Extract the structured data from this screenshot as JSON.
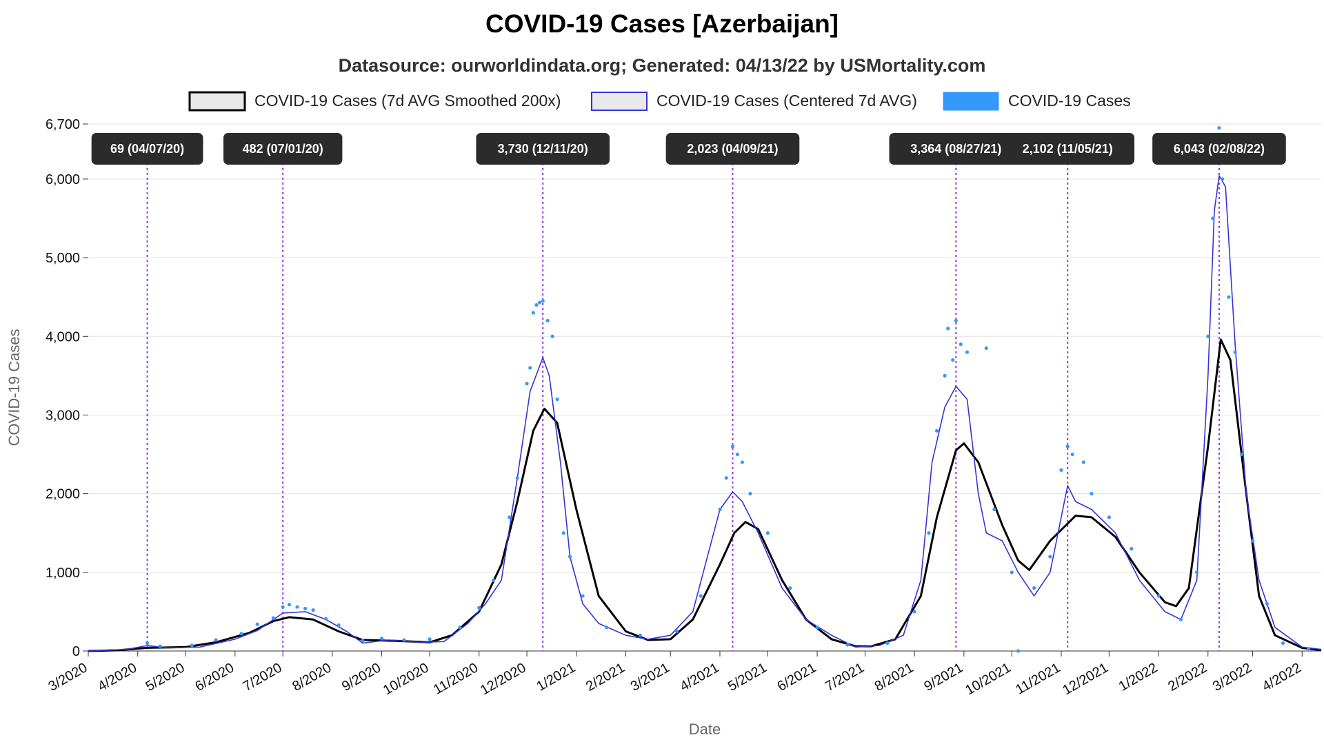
{
  "chart_data": {
    "type": "line",
    "title": "COVID-19 Cases [Azerbaijan]",
    "subtitle": "Datasource: ourworldindata.org; Generated: 04/13/22 by USMortality.com",
    "xlabel": "Date",
    "ylabel": "COVID-19 Cases",
    "x_range": [
      "2020-03-01",
      "2022-04-13"
    ],
    "ylim": [
      0,
      6700
    ],
    "y_ticks": [
      {
        "value": 0,
        "label": "0"
      },
      {
        "value": 1000,
        "label": "1,000"
      },
      {
        "value": 2000,
        "label": "2,000"
      },
      {
        "value": 3000,
        "label": "3,000"
      },
      {
        "value": 4000,
        "label": "4,000"
      },
      {
        "value": 5000,
        "label": "5,000"
      },
      {
        "value": 6000,
        "label": "6,000"
      },
      {
        "value": 6700,
        "label": "6,700"
      }
    ],
    "x_ticks": [
      {
        "date": "2020-03-01",
        "label": "3/2020"
      },
      {
        "date": "2020-04-01",
        "label": "4/2020"
      },
      {
        "date": "2020-05-01",
        "label": "5/2020"
      },
      {
        "date": "2020-06-01",
        "label": "6/2020"
      },
      {
        "date": "2020-07-01",
        "label": "7/2020"
      },
      {
        "date": "2020-08-01",
        "label": "8/2020"
      },
      {
        "date": "2020-09-01",
        "label": "9/2020"
      },
      {
        "date": "2020-10-01",
        "label": "10/2020"
      },
      {
        "date": "2020-11-01",
        "label": "11/2020"
      },
      {
        "date": "2020-12-01",
        "label": "12/2020"
      },
      {
        "date": "2021-01-01",
        "label": "1/2021"
      },
      {
        "date": "2021-02-01",
        "label": "2/2021"
      },
      {
        "date": "2021-03-01",
        "label": "3/2021"
      },
      {
        "date": "2021-04-01",
        "label": "4/2021"
      },
      {
        "date": "2021-05-01",
        "label": "5/2021"
      },
      {
        "date": "2021-06-01",
        "label": "6/2021"
      },
      {
        "date": "2021-07-01",
        "label": "7/2021"
      },
      {
        "date": "2021-08-01",
        "label": "8/2021"
      },
      {
        "date": "2021-09-01",
        "label": "9/2021"
      },
      {
        "date": "2021-10-01",
        "label": "10/2021"
      },
      {
        "date": "2021-11-01",
        "label": "11/2021"
      },
      {
        "date": "2021-12-01",
        "label": "12/2021"
      },
      {
        "date": "2022-01-01",
        "label": "1/2022"
      },
      {
        "date": "2022-02-01",
        "label": "2/2022"
      },
      {
        "date": "2022-03-01",
        "label": "3/2022"
      },
      {
        "date": "2022-04-01",
        "label": "4/2022"
      }
    ],
    "grid": true,
    "legend_position": "top",
    "series": [
      {
        "name": "COVID-19 Cases (7d AVG Smoothed 200x)",
        "style": "line",
        "color": "#000000",
        "points": [
          [
            "2020-03-01",
            0
          ],
          [
            "2020-03-20",
            10
          ],
          [
            "2020-04-07",
            40
          ],
          [
            "2020-05-01",
            50
          ],
          [
            "2020-05-20",
            110
          ],
          [
            "2020-06-10",
            230
          ],
          [
            "2020-06-25",
            380
          ],
          [
            "2020-07-05",
            430
          ],
          [
            "2020-07-20",
            400
          ],
          [
            "2020-08-05",
            250
          ],
          [
            "2020-08-20",
            140
          ],
          [
            "2020-09-10",
            130
          ],
          [
            "2020-10-01",
            110
          ],
          [
            "2020-10-15",
            200
          ],
          [
            "2020-11-01",
            500
          ],
          [
            "2020-11-15",
            1100
          ],
          [
            "2020-11-25",
            1900
          ],
          [
            "2020-12-05",
            2800
          ],
          [
            "2020-12-12",
            3080
          ],
          [
            "2020-12-20",
            2900
          ],
          [
            "2021-01-01",
            1800
          ],
          [
            "2021-01-15",
            700
          ],
          [
            "2021-02-01",
            250
          ],
          [
            "2021-02-15",
            140
          ],
          [
            "2021-03-01",
            150
          ],
          [
            "2021-03-15",
            400
          ],
          [
            "2021-04-01",
            1100
          ],
          [
            "2021-04-10",
            1500
          ],
          [
            "2021-04-17",
            1640
          ],
          [
            "2021-04-25",
            1550
          ],
          [
            "2021-05-10",
            900
          ],
          [
            "2021-05-25",
            400
          ],
          [
            "2021-06-10",
            150
          ],
          [
            "2021-06-25",
            60
          ],
          [
            "2021-07-05",
            60
          ],
          [
            "2021-07-20",
            150
          ],
          [
            "2021-08-05",
            700
          ],
          [
            "2021-08-15",
            1700
          ],
          [
            "2021-08-27",
            2550
          ],
          [
            "2021-09-01",
            2640
          ],
          [
            "2021-09-10",
            2400
          ],
          [
            "2021-09-25",
            1600
          ],
          [
            "2021-10-05",
            1150
          ],
          [
            "2021-10-12",
            1030
          ],
          [
            "2021-10-25",
            1400
          ],
          [
            "2021-11-10",
            1720
          ],
          [
            "2021-11-20",
            1700
          ],
          [
            "2021-12-05",
            1450
          ],
          [
            "2021-12-20",
            1000
          ],
          [
            "2022-01-05",
            620
          ],
          [
            "2022-01-12",
            570
          ],
          [
            "2022-01-20",
            800
          ],
          [
            "2022-02-01",
            2600
          ],
          [
            "2022-02-09",
            3960
          ],
          [
            "2022-02-15",
            3700
          ],
          [
            "2022-02-25",
            2000
          ],
          [
            "2022-03-05",
            700
          ],
          [
            "2022-03-15",
            200
          ],
          [
            "2022-04-01",
            40
          ],
          [
            "2022-04-13",
            10
          ]
        ]
      },
      {
        "name": "COVID-19 Cases (Centered 7d AVG)",
        "style": "line",
        "color": "#3333dd",
        "points": [
          [
            "2020-03-01",
            0
          ],
          [
            "2020-03-25",
            20
          ],
          [
            "2020-04-07",
            69
          ],
          [
            "2020-04-20",
            40
          ],
          [
            "2020-05-10",
            50
          ],
          [
            "2020-06-01",
            150
          ],
          [
            "2020-06-15",
            260
          ],
          [
            "2020-07-01",
            482
          ],
          [
            "2020-07-15",
            500
          ],
          [
            "2020-07-28",
            400
          ],
          [
            "2020-08-10",
            250
          ],
          [
            "2020-08-20",
            100
          ],
          [
            "2020-09-05",
            140
          ],
          [
            "2020-09-25",
            110
          ],
          [
            "2020-10-10",
            120
          ],
          [
            "2020-10-25",
            350
          ],
          [
            "2020-11-05",
            600
          ],
          [
            "2020-11-15",
            900
          ],
          [
            "2020-11-25",
            2200
          ],
          [
            "2020-12-03",
            3300
          ],
          [
            "2020-12-11",
            3730
          ],
          [
            "2020-12-15",
            3500
          ],
          [
            "2020-12-22",
            2400
          ],
          [
            "2020-12-28",
            1200
          ],
          [
            "2021-01-05",
            600
          ],
          [
            "2021-01-15",
            350
          ],
          [
            "2021-02-01",
            200
          ],
          [
            "2021-02-15",
            150
          ],
          [
            "2021-03-01",
            200
          ],
          [
            "2021-03-15",
            500
          ],
          [
            "2021-04-01",
            1800
          ],
          [
            "2021-04-09",
            2023
          ],
          [
            "2021-04-15",
            1900
          ],
          [
            "2021-04-25",
            1500
          ],
          [
            "2021-05-10",
            800
          ],
          [
            "2021-05-25",
            400
          ],
          [
            "2021-06-10",
            200
          ],
          [
            "2021-06-25",
            50
          ],
          [
            "2021-07-10",
            70
          ],
          [
            "2021-07-25",
            200
          ],
          [
            "2021-08-05",
            900
          ],
          [
            "2021-08-12",
            2400
          ],
          [
            "2021-08-20",
            3100
          ],
          [
            "2021-08-27",
            3364
          ],
          [
            "2021-09-03",
            3200
          ],
          [
            "2021-09-10",
            2000
          ],
          [
            "2021-09-15",
            1500
          ],
          [
            "2021-09-25",
            1400
          ],
          [
            "2021-10-05",
            1000
          ],
          [
            "2021-10-15",
            700
          ],
          [
            "2021-10-25",
            1000
          ],
          [
            "2021-11-05",
            2102
          ],
          [
            "2021-11-10",
            1900
          ],
          [
            "2021-11-20",
            1800
          ],
          [
            "2021-12-05",
            1500
          ],
          [
            "2021-12-20",
            900
          ],
          [
            "2022-01-05",
            500
          ],
          [
            "2022-01-15",
            400
          ],
          [
            "2022-01-25",
            900
          ],
          [
            "2022-02-01",
            3500
          ],
          [
            "2022-02-05",
            5600
          ],
          [
            "2022-02-08",
            6043
          ],
          [
            "2022-02-12",
            5900
          ],
          [
            "2022-02-18",
            3900
          ],
          [
            "2022-02-25",
            2000
          ],
          [
            "2022-03-05",
            900
          ],
          [
            "2022-03-15",
            300
          ],
          [
            "2022-04-01",
            50
          ],
          [
            "2022-04-13",
            20
          ]
        ]
      },
      {
        "name": "COVID-19 Cases",
        "style": "scatter",
        "color": "#3399ff",
        "points": [
          [
            "2020-04-07",
            100
          ],
          [
            "2020-04-15",
            60
          ],
          [
            "2020-05-05",
            70
          ],
          [
            "2020-05-20",
            140
          ],
          [
            "2020-06-05",
            220
          ],
          [
            "2020-06-15",
            340
          ],
          [
            "2020-06-25",
            420
          ],
          [
            "2020-07-01",
            560
          ],
          [
            "2020-07-05",
            590
          ],
          [
            "2020-07-10",
            560
          ],
          [
            "2020-07-15",
            540
          ],
          [
            "2020-07-20",
            520
          ],
          [
            "2020-07-28",
            410
          ],
          [
            "2020-08-05",
            330
          ],
          [
            "2020-08-20",
            130
          ],
          [
            "2020-09-01",
            160
          ],
          [
            "2020-09-15",
            140
          ],
          [
            "2020-10-01",
            150
          ],
          [
            "2020-10-20",
            300
          ],
          [
            "2020-11-01",
            550
          ],
          [
            "2020-11-10",
            900
          ],
          [
            "2020-11-20",
            1700
          ],
          [
            "2020-11-25",
            2200
          ],
          [
            "2020-12-01",
            3400
          ],
          [
            "2020-12-03",
            3600
          ],
          [
            "2020-12-05",
            4300
          ],
          [
            "2020-12-07",
            4400
          ],
          [
            "2020-12-09",
            4430
          ],
          [
            "2020-12-11",
            4450
          ],
          [
            "2020-12-14",
            4200
          ],
          [
            "2020-12-17",
            4000
          ],
          [
            "2020-12-20",
            3200
          ],
          [
            "2020-12-24",
            1500
          ],
          [
            "2020-12-28",
            1200
          ],
          [
            "2021-01-05",
            700
          ],
          [
            "2021-01-20",
            300
          ],
          [
            "2021-02-10",
            200
          ],
          [
            "2021-03-05",
            250
          ],
          [
            "2021-03-20",
            700
          ],
          [
            "2021-04-01",
            1800
          ],
          [
            "2021-04-05",
            2200
          ],
          [
            "2021-04-09",
            2600
          ],
          [
            "2021-04-12",
            2500
          ],
          [
            "2021-04-15",
            2400
          ],
          [
            "2021-04-20",
            2000
          ],
          [
            "2021-05-01",
            1500
          ],
          [
            "2021-05-15",
            800
          ],
          [
            "2021-06-01",
            300
          ],
          [
            "2021-06-20",
            80
          ],
          [
            "2021-07-15",
            100
          ],
          [
            "2021-08-01",
            500
          ],
          [
            "2021-08-10",
            1500
          ],
          [
            "2021-08-15",
            2800
          ],
          [
            "2021-08-20",
            3500
          ],
          [
            "2021-08-22",
            4100
          ],
          [
            "2021-08-25",
            3700
          ],
          [
            "2021-08-27",
            4200
          ],
          [
            "2021-08-30",
            3900
          ],
          [
            "2021-09-03",
            3800
          ],
          [
            "2021-09-15",
            3850
          ],
          [
            "2021-09-20",
            1800
          ],
          [
            "2021-10-01",
            1000
          ],
          [
            "2021-10-05",
            0
          ],
          [
            "2021-10-15",
            800
          ],
          [
            "2021-10-25",
            1200
          ],
          [
            "2021-11-01",
            2300
          ],
          [
            "2021-11-05",
            2600
          ],
          [
            "2021-11-08",
            2500
          ],
          [
            "2021-11-15",
            2400
          ],
          [
            "2021-11-20",
            2000
          ],
          [
            "2021-12-01",
            1700
          ],
          [
            "2021-12-15",
            1300
          ],
          [
            "2022-01-01",
            700
          ],
          [
            "2022-01-15",
            400
          ],
          [
            "2022-01-25",
            1000
          ],
          [
            "2022-02-01",
            4000
          ],
          [
            "2022-02-04",
            5500
          ],
          [
            "2022-02-06",
            6500
          ],
          [
            "2022-02-08",
            6650
          ],
          [
            "2022-02-10",
            6000
          ],
          [
            "2022-02-14",
            4500
          ],
          [
            "2022-02-18",
            3800
          ],
          [
            "2022-02-22",
            2500
          ],
          [
            "2022-03-01",
            1400
          ],
          [
            "2022-03-10",
            600
          ],
          [
            "2022-03-20",
            100
          ],
          [
            "2022-04-05",
            30
          ]
        ]
      }
    ],
    "annotations": [
      {
        "date": "2020-04-07",
        "label": "69 (04/07/20)"
      },
      {
        "date": "2020-07-01",
        "label": "482 (07/01/20)"
      },
      {
        "date": "2020-12-11",
        "label": "3,730 (12/11/20)"
      },
      {
        "date": "2021-04-09",
        "label": "2,023 (04/09/21)"
      },
      {
        "date": "2021-08-27",
        "label": "3,364 (08/27/21)"
      },
      {
        "date": "2021-11-05",
        "label": "2,102 (11/05/21)"
      },
      {
        "date": "2022-02-08",
        "label": "6,043 (02/08/22)"
      }
    ]
  }
}
